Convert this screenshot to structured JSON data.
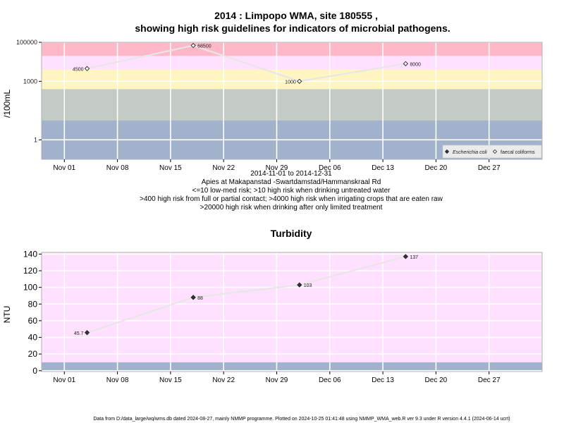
{
  "header": {
    "title_line1": "2014 : Limpopo WMA, site 180555 ,",
    "title_line2": "showing high risk guidelines for indicators of microbial pathogens."
  },
  "micro_info": {
    "date_range": "2014-11-01 to 2014-12-31",
    "site_name": "Apies at Makapanstad -Swartdamstad/Hammanskraal Rd",
    "guidelines": [
      "<=10 low-med risk; >10 high risk when drinking untreated water",
      ">400 high risk from full or partial contact; >4000 high risk when irrigating crops that are eaten raw",
      ">20000 high risk when drinking after only limited treatment"
    ]
  },
  "turbidity_title": "Turbidity",
  "footer": "Data from D:/data_large/wq/wms.db dated 2024-08-27, mainly NMMP programme. Plotted on 2024-10-25 01:41:48 using NMMP_WMA_web.R ver 9.3 under R version 4.4.1 (2024-06-14 ucrt)",
  "chart_data": [
    {
      "type": "line",
      "ylabel": "/100mL",
      "xlabel": "",
      "y_scale": "log10",
      "ylim": [
        0.1,
        100000
      ],
      "x_range": [
        "2014-10-29",
        "2015-01-03"
      ],
      "x_ticks": [
        {
          "date": "2014-11-01",
          "label": "Nov 01"
        },
        {
          "date": "2014-11-08",
          "label": "Nov 08"
        },
        {
          "date": "2014-11-15",
          "label": "Nov 15"
        },
        {
          "date": "2014-11-22",
          "label": "Nov 22"
        },
        {
          "date": "2014-11-29",
          "label": "Nov 29"
        },
        {
          "date": "2014-12-06",
          "label": "Dec 06"
        },
        {
          "date": "2014-12-13",
          "label": "Dec 13"
        },
        {
          "date": "2014-12-20",
          "label": "Dec 20"
        },
        {
          "date": "2014-12-27",
          "label": "Dec 27"
        }
      ],
      "y_ticks": [
        {
          "value": 1,
          "label": "1"
        },
        {
          "value": 1000,
          "label": "1000"
        },
        {
          "value": 100000,
          "label": "100000"
        }
      ],
      "grid": true,
      "bands": [
        {
          "from": 0.01,
          "to": 10,
          "color": "#a3b2cc"
        },
        {
          "from": 10,
          "to": 400,
          "color": "#c4cbc4"
        },
        {
          "from": 400,
          "to": 4000,
          "color": "#fff5c0"
        },
        {
          "from": 4000,
          "to": 20000,
          "color": "#ffe0ff"
        },
        {
          "from": 20000,
          "to": 1000000,
          "color": "#ffb8c8"
        }
      ],
      "legend_position": "bottom-right",
      "series": [
        {
          "name": "faecal coliforms",
          "marker": "open-diamond",
          "points": [
            {
              "x": "2014-11-04",
              "y": 4500,
              "label": "4500"
            },
            {
              "x": "2014-11-18",
              "y": 68500,
              "label": "68500"
            },
            {
              "x": "2014-12-02",
              "y": 1000,
              "label": "1000"
            },
            {
              "x": "2014-12-16",
              "y": 8000,
              "label": "8000"
            }
          ]
        }
      ],
      "legend": [
        {
          "name": "Escherichia coli",
          "marker": "filled-diamond"
        },
        {
          "name": "faecal coliforms",
          "marker": "open-diamond"
        }
      ]
    },
    {
      "type": "line",
      "title": "Turbidity",
      "ylabel": "NTU",
      "xlabel": "",
      "ylim": [
        -1,
        142
      ],
      "x_range": [
        "2014-10-29",
        "2015-01-03"
      ],
      "x_ticks": [
        {
          "date": "2014-11-01",
          "label": "Nov 01"
        },
        {
          "date": "2014-11-08",
          "label": "Nov 08"
        },
        {
          "date": "2014-11-15",
          "label": "Nov 15"
        },
        {
          "date": "2014-11-22",
          "label": "Nov 22"
        },
        {
          "date": "2014-11-29",
          "label": "Nov 29"
        },
        {
          "date": "2014-12-06",
          "label": "Dec 06"
        },
        {
          "date": "2014-12-13",
          "label": "Dec 13"
        },
        {
          "date": "2014-12-20",
          "label": "Dec 20"
        },
        {
          "date": "2014-12-27",
          "label": "Dec 27"
        }
      ],
      "y_ticks": [
        {
          "value": 0,
          "label": "0"
        },
        {
          "value": 20,
          "label": "20"
        },
        {
          "value": 40,
          "label": "40"
        },
        {
          "value": 60,
          "label": "60"
        },
        {
          "value": 80,
          "label": "80"
        },
        {
          "value": 100,
          "label": "100"
        },
        {
          "value": 120,
          "label": "120"
        },
        {
          "value": 140,
          "label": "140"
        }
      ],
      "grid": true,
      "bands": [
        {
          "from": -10,
          "to": 10,
          "color": "#a3b2cc"
        },
        {
          "from": 10,
          "to": 1000,
          "color": "#ffe0ff"
        }
      ],
      "series": [
        {
          "marker": "filled-diamond",
          "points": [
            {
              "x": "2014-11-04",
              "y": 45.7,
              "label": "45.7"
            },
            {
              "x": "2014-11-18",
              "y": 88,
              "label": "88"
            },
            {
              "x": "2014-12-02",
              "y": 103,
              "label": "103"
            },
            {
              "x": "2014-12-16",
              "y": 137,
              "label": "137"
            }
          ]
        }
      ]
    }
  ]
}
